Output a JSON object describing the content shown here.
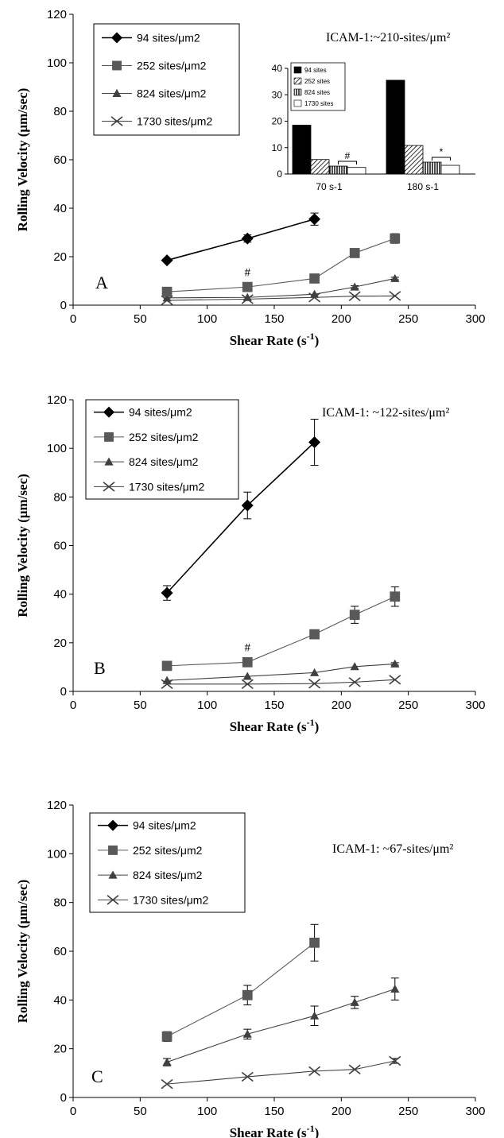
{
  "markers": [
    "diamond",
    "square",
    "triangle",
    "x"
  ],
  "colors": [
    "#000000",
    "#595959",
    "#404040",
    "#404040"
  ],
  "chart_data": [
    {
      "type": "line",
      "panel_label": "A",
      "annotation": "ICAM-1:~210-sites/μm²",
      "xlabel": "Shear Rate (s",
      "xlabel_sup": "-1",
      "xlabel_end": ")",
      "ylabel": "Rolling Velocity (μm/sec)",
      "xlim": [
        0,
        300
      ],
      "ylim": [
        0,
        120
      ],
      "xticks": [
        0,
        50,
        100,
        150,
        200,
        250,
        300
      ],
      "yticks": [
        0,
        20,
        40,
        60,
        80,
        100,
        120
      ],
      "legend_position": "top-left",
      "series": [
        {
          "name": "94 sites/μm2",
          "x": [
            70,
            130,
            180
          ],
          "y": [
            18.5,
            27.5,
            35.5
          ],
          "err": [
            0,
            1.5,
            2.5
          ]
        },
        {
          "name": "252 sites/μm2",
          "x": [
            70,
            130,
            180,
            210,
            240
          ],
          "y": [
            5.5,
            7.5,
            11,
            21.5,
            27.5
          ],
          "err": [
            0,
            1,
            0,
            0,
            2
          ]
        },
        {
          "name": "824 sites/μm2",
          "x": [
            70,
            130,
            180,
            210,
            240
          ],
          "y": [
            3,
            3.2,
            4.5,
            7.5,
            11
          ],
          "err": [
            0,
            0,
            0,
            0.5,
            0.5
          ]
        },
        {
          "name": "1730 sites/μm2",
          "x": [
            70,
            130,
            180,
            210,
            240
          ],
          "y": [
            2,
            2.5,
            3.2,
            3.7,
            3.8
          ],
          "err": [
            0,
            0,
            0,
            0,
            0
          ]
        }
      ],
      "marks": [
        {
          "text": "#",
          "x": 130,
          "y": 12
        }
      ],
      "inset": {
        "type": "bar",
        "categories": [
          "70 s-1",
          "180 s-1"
        ],
        "ylim": [
          0,
          40
        ],
        "yticks": [
          0,
          10,
          20,
          30,
          40
        ],
        "series": [
          {
            "name": "94 sites",
            "values": [
              18.5,
              35.5
            ]
          },
          {
            "name": "252 sites",
            "values": [
              5.5,
              10.8
            ]
          },
          {
            "name": "824 sites",
            "values": [
              3,
              4.5
            ]
          },
          {
            "name": "1730 sites",
            "values": [
              2.5,
              3.3
            ]
          }
        ],
        "marks": [
          "#",
          "*"
        ]
      }
    },
    {
      "type": "line",
      "panel_label": "B",
      "annotation": "ICAM-1: ~122-sites/μm²",
      "xlabel": "Shear Rate (s",
      "xlabel_sup": "-1",
      "xlabel_end": ")",
      "ylabel": "Rolling Velocity (μm/sec)",
      "xlim": [
        0,
        300
      ],
      "ylim": [
        0,
        120
      ],
      "xticks": [
        0,
        50,
        100,
        150,
        200,
        250,
        300
      ],
      "yticks": [
        0,
        20,
        40,
        60,
        80,
        100,
        120
      ],
      "legend_position": "top-left",
      "series": [
        {
          "name": "94 sites/μm2",
          "x": [
            70,
            130,
            180
          ],
          "y": [
            40.5,
            76.5,
            102.5
          ],
          "err": [
            3,
            5.5,
            9.5
          ]
        },
        {
          "name": "252 sites/μm2",
          "x": [
            70,
            130,
            180,
            210,
            240
          ],
          "y": [
            10.5,
            12,
            23.5,
            31.5,
            39
          ],
          "err": [
            0,
            0,
            0,
            3.5,
            4
          ]
        },
        {
          "name": "824 sites/μm2",
          "x": [
            70,
            130,
            180,
            210,
            240
          ],
          "y": [
            4.5,
            6.2,
            7.7,
            10.2,
            11.3
          ],
          "err": [
            0,
            0,
            0,
            0,
            0.5
          ]
        },
        {
          "name": "1730 sites/μm2",
          "x": [
            70,
            130,
            180,
            210,
            240
          ],
          "y": [
            3,
            3,
            3.2,
            3.8,
            4.8
          ],
          "err": [
            0,
            0,
            0,
            0,
            0
          ]
        }
      ],
      "marks": [
        {
          "text": "#",
          "x": 130,
          "y": 16.5
        }
      ]
    },
    {
      "type": "line",
      "panel_label": "C",
      "annotation": "ICAM-1: ~67-sites/μm²",
      "xlabel": "Shear Rate (s",
      "xlabel_sup": "-1",
      "xlabel_end": ")",
      "ylabel": "Rolling Velocity (μm/sec)",
      "xlim": [
        0,
        300
      ],
      "ylim": [
        0,
        120
      ],
      "xticks": [
        0,
        50,
        100,
        150,
        200,
        250,
        300
      ],
      "yticks": [
        0,
        20,
        40,
        60,
        80,
        100,
        120
      ],
      "legend_position": "top-left",
      "series": [
        {
          "name": "94 sites/μm2",
          "x": [],
          "y": [],
          "err": []
        },
        {
          "name": "252 sites/μm2",
          "x": [
            70,
            130,
            180
          ],
          "y": [
            25,
            42,
            63.5
          ],
          "err": [
            2,
            4,
            7.5
          ]
        },
        {
          "name": "824 sites/μm2",
          "x": [
            70,
            130,
            180,
            210,
            240
          ],
          "y": [
            14.5,
            26,
            33.5,
            39,
            44.5
          ],
          "err": [
            1.5,
            2,
            4,
            2.5,
            4.5
          ]
        },
        {
          "name": "1730 sites/μm2",
          "x": [
            70,
            130,
            180,
            210,
            240
          ],
          "y": [
            5.5,
            8.5,
            10.8,
            11.5,
            15
          ],
          "err": [
            0,
            0,
            0,
            0,
            1
          ]
        }
      ],
      "marks": []
    }
  ]
}
